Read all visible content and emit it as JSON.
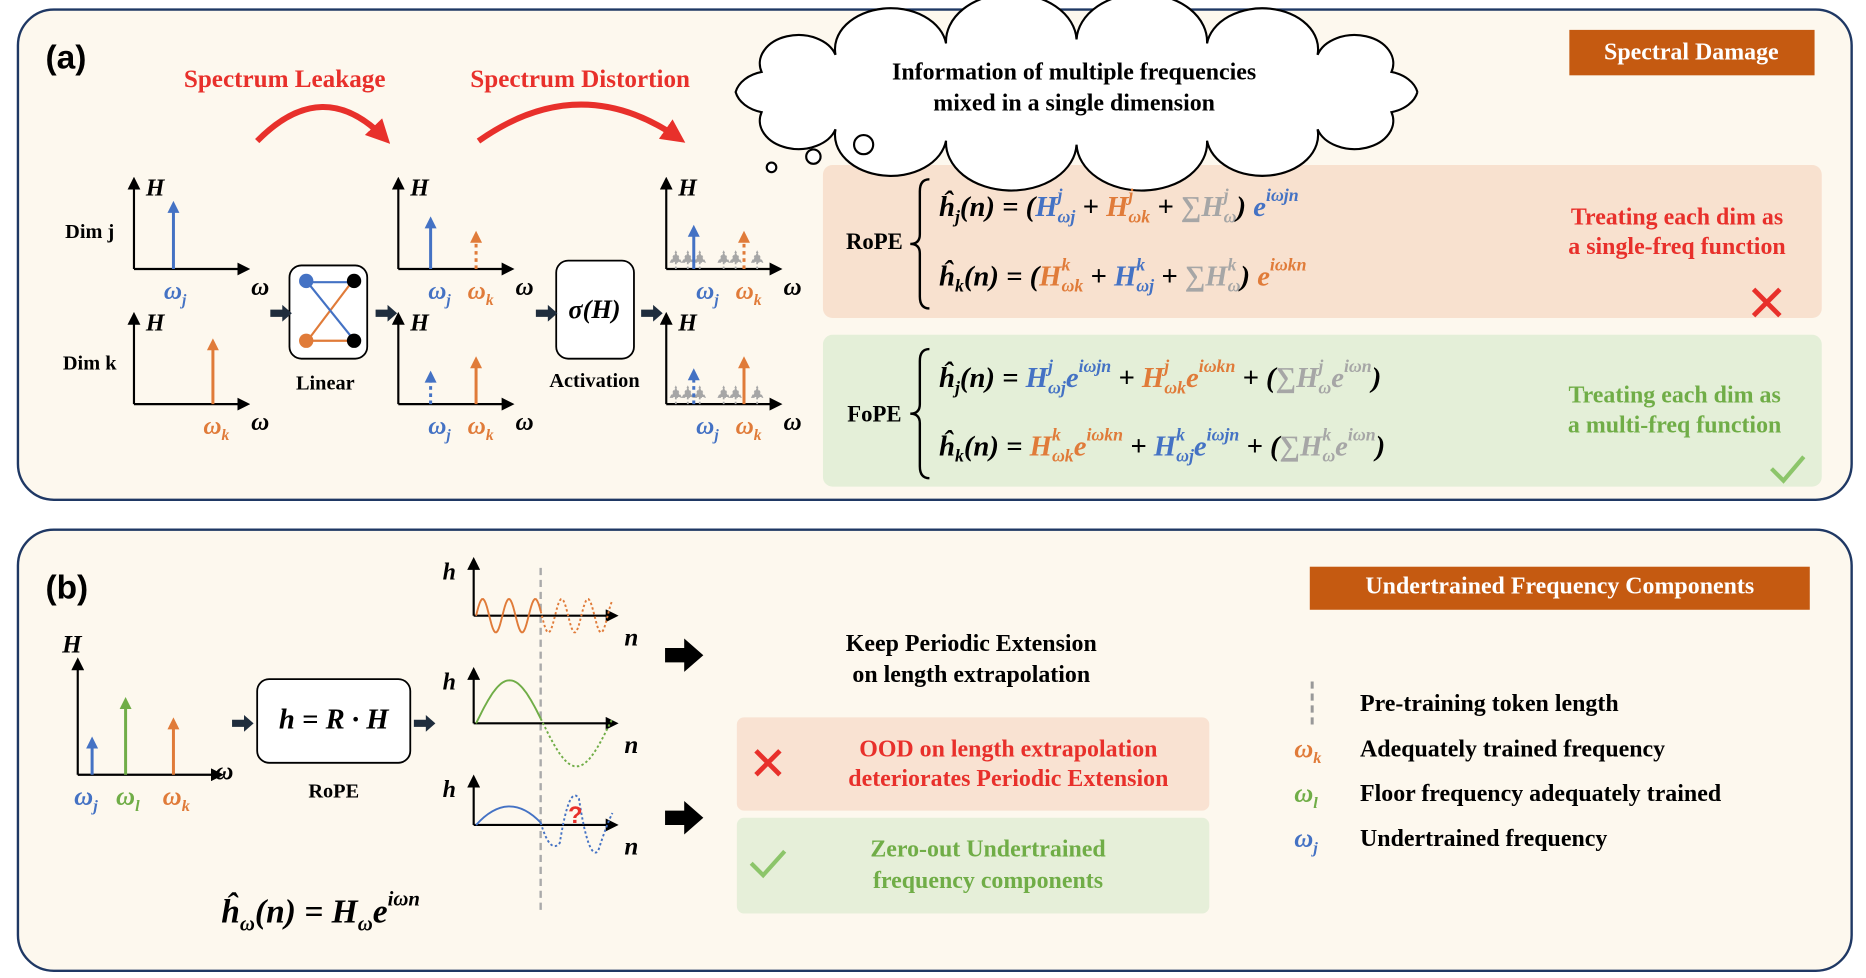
{
  "panel_a": {
    "label": "(a)",
    "tag": "Spectral Damage",
    "arrows": [
      "Spectrum Leakage",
      "Spectrum Distortion"
    ],
    "thought": [
      "Information of multiple frequencies",
      "mixed in a single dimension"
    ],
    "dims": [
      "Dim j",
      "Dim k"
    ],
    "axis_h": "H",
    "axis_w": "ω",
    "freq_j": {
      "t": "ω",
      "sub": "j",
      "color": "#4472c4"
    },
    "freq_k": {
      "t": "ω",
      "sub": "k",
      "color": "#e07b39"
    },
    "blocks": [
      "Linear",
      "Activation"
    ],
    "activation": "σ(H)",
    "rope": {
      "name": "RoPE",
      "formulas": [
        [
          {
            "t": "ĥ",
            "sub": "j"
          },
          {
            "t": "(n) = ("
          },
          {
            "t": "H",
            "sup": "j",
            "sub": "ωj",
            "color": "#4472c4"
          },
          {
            "t": " + "
          },
          {
            "t": "H",
            "sup": "j",
            "sub": "ωk",
            "color": "#e07b39"
          },
          {
            "t": " + "
          },
          {
            "t": "∑H",
            "sup": "j",
            "sub": "ω",
            "color": "#a6a6a6"
          },
          {
            "t": ") "
          },
          {
            "t": "e",
            "sup": "iωjn",
            "color": "#4472c4"
          }
        ],
        [
          {
            "t": "ĥ",
            "sub": "k"
          },
          {
            "t": "(n) = ("
          },
          {
            "t": "H",
            "sup": "k",
            "sub": "ωk",
            "color": "#e07b39"
          },
          {
            "t": " + "
          },
          {
            "t": "H",
            "sup": "k",
            "sub": "ωj",
            "color": "#4472c4"
          },
          {
            "t": " + "
          },
          {
            "t": "∑H",
            "sup": "k",
            "sub": "ω",
            "color": "#a6a6a6"
          },
          {
            "t": ") "
          },
          {
            "t": "e",
            "sup": "iωkn",
            "color": "#e07b39"
          }
        ]
      ],
      "note": [
        "Treating each dim as",
        "a single-freq function"
      ]
    },
    "fope": {
      "name": "FoPE",
      "formulas": [
        [
          {
            "t": "ĥ",
            "sub": "j"
          },
          {
            "t": "(n) = "
          },
          {
            "t": "H",
            "sup": "j",
            "sub": "ωj",
            "color": "#4472c4"
          },
          {
            "t": "e",
            "sup": "iωjn",
            "color": "#4472c4"
          },
          {
            "t": " + "
          },
          {
            "t": "H",
            "sup": "j",
            "sub": "ωk",
            "color": "#e07b39"
          },
          {
            "t": "e",
            "sup": "iωkn",
            "color": "#e07b39"
          },
          {
            "t": " + ("
          },
          {
            "t": "∑H",
            "sup": "j",
            "sub": "ω",
            "color": "#a6a6a6"
          },
          {
            "t": "e",
            "sup": "iωn",
            "color": "#a6a6a6"
          },
          {
            "t": ")"
          }
        ],
        [
          {
            "t": "ĥ",
            "sub": "k"
          },
          {
            "t": "(n) = "
          },
          {
            "t": "H",
            "sup": "k",
            "sub": "ωk",
            "color": "#e07b39"
          },
          {
            "t": "e",
            "sup": "iωkn",
            "color": "#e07b39"
          },
          {
            "t": " + "
          },
          {
            "t": "H",
            "sup": "k",
            "sub": "ωj",
            "color": "#4472c4"
          },
          {
            "t": "e",
            "sup": "iωjn",
            "color": "#4472c4"
          },
          {
            "t": " + ("
          },
          {
            "t": "∑H",
            "sup": "k",
            "sub": "ω",
            "color": "#a6a6a6"
          },
          {
            "t": "e",
            "sup": "iωn",
            "color": "#a6a6a6"
          },
          {
            "t": ")"
          }
        ]
      ],
      "note": [
        "Treating each dim as",
        "a multi-freq function"
      ]
    }
  },
  "panel_b": {
    "label": "(b)",
    "tag": "Undertrained  Frequency Components",
    "axis_h": "H",
    "axis_w": "ω",
    "wave_h": "h",
    "wave_n": "n",
    "freqs": [
      {
        "t": "ω",
        "sub": "j",
        "color": "#4472c4"
      },
      {
        "t": "ω",
        "sub": "l",
        "color": "#70ad47"
      },
      {
        "t": "ω",
        "sub": "k",
        "color": "#e07b39"
      }
    ],
    "block": "h = R · H",
    "block_label": "RoPE",
    "formula": [
      {
        "t": "ĥ",
        "sub": "ω"
      },
      {
        "t": "(n) = "
      },
      {
        "t": "H",
        "sub": "ω"
      },
      {
        "t": "e",
        "sup": "iωn"
      }
    ],
    "question": "?",
    "keep": [
      "Keep Periodic Extension",
      "on length extrapolation"
    ],
    "bad": [
      "OOD on length extrapolation",
      "deteriorates  Periodic Extension"
    ],
    "good": [
      "Zero-out Undertrained",
      "frequency components"
    ],
    "legend": {
      "pretrain": "Pre-training  token length",
      "items": [
        {
          "symbol": {
            "t": "ω",
            "sub": "k",
            "color": "#e07b39"
          },
          "text": "Adequately trained frequency"
        },
        {
          "symbol": {
            "t": "ω",
            "sub": "l",
            "color": "#70ad47"
          },
          "text": "Floor frequency adequately trained"
        },
        {
          "symbol": {
            "t": "ω",
            "sub": "j",
            "color": "#4472c4"
          },
          "text": "Undertrained  frequency"
        }
      ]
    }
  }
}
